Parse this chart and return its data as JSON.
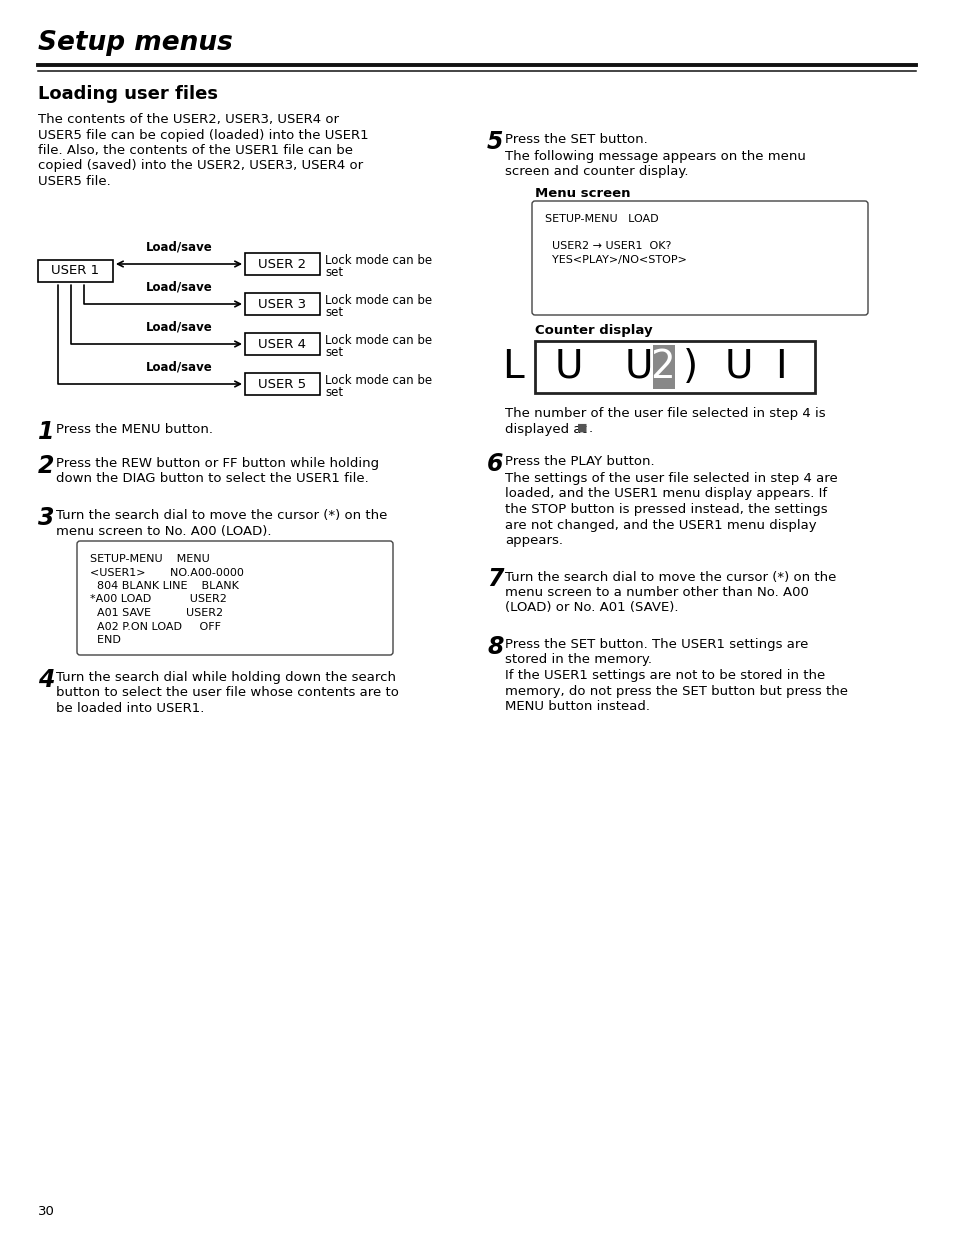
{
  "title": "Setup menus",
  "section_title": "Loading user files",
  "bg_color": "#ffffff",
  "text_color": "#000000",
  "page_number": "30",
  "para1_lines": [
    "The contents of the USER2, USER3, USER4 or",
    "USER5 file can be copied (loaded) into the USER1",
    "file. Also, the contents of the USER1 file can be",
    "copied (saved) into the USER2, USER3, USER4 or",
    "USER5 file."
  ],
  "step1": "Press the MENU button.",
  "step2_lines": [
    "Press the REW button or FF button while holding",
    "down the DIAG button to select the USER1 file."
  ],
  "step3_lines": [
    "Turn the search dial to move the cursor (*) on the",
    "menu screen to No. A00 (LOAD)."
  ],
  "menu_screen_text": "SETUP-MENU    MENU\n<USER1>       NO.A00-0000\n  804 BLANK LINE    BLANK\n*A00 LOAD           USER2\n  A01 SAVE          USER2\n  A02 P.ON LOAD     OFF\n  END",
  "step4_lines": [
    "Turn the search dial while holding down the search",
    "button to select the user file whose contents are to",
    "be loaded into USER1."
  ],
  "step5": "Press the SET button.",
  "step5_sub_lines": [
    "The following message appears on the menu",
    "screen and counter display."
  ],
  "menu_screen_label": "Menu screen",
  "menu_screen2_text": "SETUP-MENU   LOAD\n\n  USER2 → USER1  OK?\n  YES<PLAY>/NO<STOP>",
  "counter_display_label": "Counter display",
  "step4_note_lines": [
    "The number of the user file selected in step 4 is",
    "displayed at ■."
  ],
  "step6": "Press the PLAY button.",
  "step6_sub_lines": [
    "The settings of the user file selected in step 4 are",
    "loaded, and the USER1 menu display appears. If",
    "the STOP button is pressed instead, the settings",
    "are not changed, and the USER1 menu display",
    "appears."
  ],
  "step7_lines": [
    "Turn the search dial to move the cursor (*) on the",
    "menu screen to a number other than No. A00",
    "(LOAD) or No. A01 (SAVE)."
  ],
  "step8_lines": [
    "Press the SET button. The USER1 settings are",
    "stored in the memory."
  ],
  "step8_sub_lines": [
    "If the USER1 settings are not to be stored in the",
    "memory, do not press the SET button but press the",
    "MENU button instead."
  ]
}
